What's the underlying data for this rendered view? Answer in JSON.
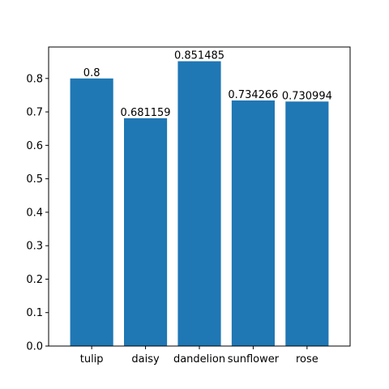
{
  "chart_data": {
    "type": "bar",
    "categories": [
      "tulip",
      "daisy",
      "dandelion",
      "sunflower",
      "rose"
    ],
    "values": [
      0.8,
      0.681159,
      0.851485,
      0.734266,
      0.730994
    ],
    "value_labels": [
      "0.8",
      "0.681159",
      "0.851485",
      "0.734266",
      "0.730994"
    ],
    "yticks": [
      "0.0",
      "0.1",
      "0.2",
      "0.3",
      "0.4",
      "0.5",
      "0.6",
      "0.7",
      "0.8"
    ],
    "ylim": [
      0,
      0.894
    ],
    "title": "",
    "xlabel": "",
    "ylabel": "",
    "grid": false,
    "bar_color": "#1f77b4"
  }
}
